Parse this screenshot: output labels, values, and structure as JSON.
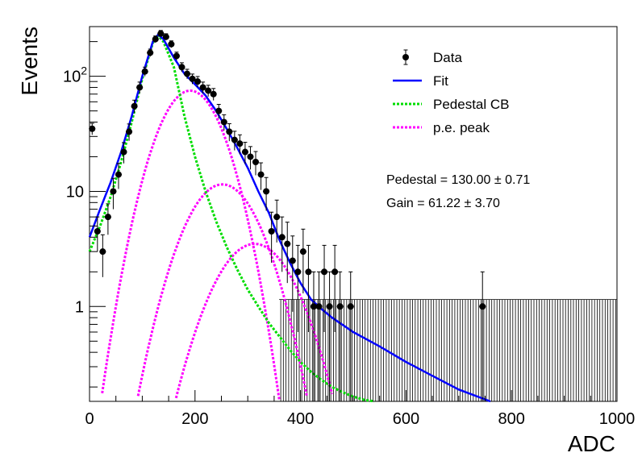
{
  "chart_data": {
    "type": "scatter",
    "xlabel": "ADC",
    "ylabel": "Events",
    "xlim": [
      0,
      1000
    ],
    "ylim": [
      0.15,
      270
    ],
    "yscale": "log",
    "grid": false,
    "legend_position": "top-right",
    "x_ticks": [
      0,
      200,
      400,
      600,
      800,
      1000
    ],
    "y_ticks": [
      {
        "value": 1,
        "base": "1",
        "exp": ""
      },
      {
        "value": 10,
        "base": "10",
        "exp": ""
      },
      {
        "value": 100,
        "base": "10",
        "exp": "2"
      }
    ],
    "legend": [
      {
        "key": "data",
        "label": "Data",
        "color": "#000000",
        "style": "marker"
      },
      {
        "key": "fit",
        "label": "Fit",
        "color": "#0000ff",
        "style": "solid"
      },
      {
        "key": "ped",
        "label": "Pedestal CB",
        "color": "#00dd00",
        "style": "dotted"
      },
      {
        "key": "pe",
        "label": "p.e. peak",
        "color": "#ff00ff",
        "style": "dotted"
      }
    ],
    "stats": [
      {
        "label": "Pedestal = 130.00",
        "pm": "±",
        "err": "0.71"
      },
      {
        "label": "Gain = 61.22",
        "pm": "±",
        "err": "3.70"
      }
    ],
    "data_points": [
      {
        "x": 5,
        "y": 35,
        "err": 4
      },
      {
        "x": 15,
        "y": 4.5,
        "err": 1.5
      },
      {
        "x": 25,
        "y": 3,
        "err": 1.2
      },
      {
        "x": 35,
        "y": 6,
        "err": 1.8
      },
      {
        "x": 45,
        "y": 10,
        "err": 3
      },
      {
        "x": 55,
        "y": 14,
        "err": 3.5
      },
      {
        "x": 65,
        "y": 22,
        "err": 4.5
      },
      {
        "x": 75,
        "y": 33,
        "err": 5.5
      },
      {
        "x": 85,
        "y": 55,
        "err": 7
      },
      {
        "x": 95,
        "y": 80,
        "err": 9
      },
      {
        "x": 105,
        "y": 110,
        "err": 10
      },
      {
        "x": 115,
        "y": 160,
        "err": 12
      },
      {
        "x": 125,
        "y": 210,
        "err": 14
      },
      {
        "x": 135,
        "y": 235,
        "err": 15
      },
      {
        "x": 145,
        "y": 220,
        "err": 14
      },
      {
        "x": 155,
        "y": 190,
        "err": 13
      },
      {
        "x": 165,
        "y": 150,
        "err": 12
      },
      {
        "x": 175,
        "y": 120,
        "err": 11
      },
      {
        "x": 185,
        "y": 105,
        "err": 10
      },
      {
        "x": 195,
        "y": 95,
        "err": 9.5
      },
      {
        "x": 205,
        "y": 90,
        "err": 9.5
      },
      {
        "x": 215,
        "y": 80,
        "err": 9
      },
      {
        "x": 225,
        "y": 75,
        "err": 8.5
      },
      {
        "x": 235,
        "y": 70,
        "err": 8.3
      },
      {
        "x": 245,
        "y": 50,
        "err": 7
      },
      {
        "x": 255,
        "y": 40,
        "err": 6.3
      },
      {
        "x": 265,
        "y": 33,
        "err": 5.7
      },
      {
        "x": 275,
        "y": 28,
        "err": 5.3
      },
      {
        "x": 285,
        "y": 26,
        "err": 5
      },
      {
        "x": 295,
        "y": 22,
        "err": 4.7
      },
      {
        "x": 305,
        "y": 20,
        "err": 4.5
      },
      {
        "x": 315,
        "y": 18,
        "err": 4.2
      },
      {
        "x": 325,
        "y": 14,
        "err": 3.7
      },
      {
        "x": 335,
        "y": 10,
        "err": 3.2
      },
      {
        "x": 345,
        "y": 4.5,
        "err": 2.1
      },
      {
        "x": 355,
        "y": 6,
        "err": 2.4
      },
      {
        "x": 365,
        "y": 4,
        "err": 2
      },
      {
        "x": 375,
        "y": 3.5,
        "err": 1.9
      },
      {
        "x": 385,
        "y": 2.5,
        "err": 1.6
      },
      {
        "x": 395,
        "y": 2,
        "err": 1.4
      },
      {
        "x": 405,
        "y": 3,
        "err": 1.7
      },
      {
        "x": 415,
        "y": 2,
        "err": 1.4
      },
      {
        "x": 425,
        "y": 1,
        "err": 1
      },
      {
        "x": 435,
        "y": 1,
        "err": 1
      },
      {
        "x": 445,
        "y": 2,
        "err": 1.4
      },
      {
        "x": 455,
        "y": 1,
        "err": 1
      },
      {
        "x": 465,
        "y": 2,
        "err": 1.4
      },
      {
        "x": 475,
        "y": 1,
        "err": 1
      },
      {
        "x": 495,
        "y": 1,
        "err": 1
      },
      {
        "x": 745,
        "y": 1,
        "err": 1
      }
    ],
    "empty_bins": {
      "x_from": 360,
      "x_to": 1000,
      "bin_width": 5,
      "upper": 1.15
    },
    "curves": {
      "fit": {
        "x": [
          0,
          20,
          40,
          60,
          80,
          100,
          120,
          130,
          140,
          160,
          180,
          200,
          220,
          240,
          260,
          280,
          300,
          320,
          340,
          360,
          380,
          400,
          420,
          440,
          460,
          500,
          550,
          600,
          650,
          700,
          760
        ],
        "y": [
          4,
          7,
          12,
          22,
          45,
          100,
          200,
          230,
          210,
          145,
          105,
          85,
          68,
          50,
          35,
          24,
          16,
          10,
          6.5,
          3.8,
          2.4,
          1.6,
          1.15,
          0.95,
          0.8,
          0.6,
          0.45,
          0.33,
          0.25,
          0.19,
          0.15
        ]
      },
      "pedestal_cb": {
        "x": [
          0,
          20,
          40,
          60,
          80,
          100,
          120,
          130,
          140,
          160,
          180,
          200,
          220,
          240,
          260,
          280,
          300,
          320,
          340,
          360,
          380,
          400,
          420,
          440,
          460,
          480,
          500,
          520,
          540
        ],
        "y": [
          3,
          5,
          9,
          18,
          40,
          95,
          195,
          225,
          200,
          120,
          45,
          20,
          10,
          5.5,
          3.3,
          2.1,
          1.4,
          1,
          0.72,
          0.55,
          0.42,
          0.33,
          0.27,
          0.23,
          0.2,
          0.18,
          0.165,
          0.155,
          0.15
        ]
      },
      "pe_peaks": [
        {
          "mu": 191,
          "sigma": 48,
          "amp": 75
        },
        {
          "mu": 252,
          "sigma": 55,
          "amp": 11.5
        },
        {
          "mu": 313,
          "sigma": 60,
          "amp": 3.5
        }
      ]
    }
  }
}
